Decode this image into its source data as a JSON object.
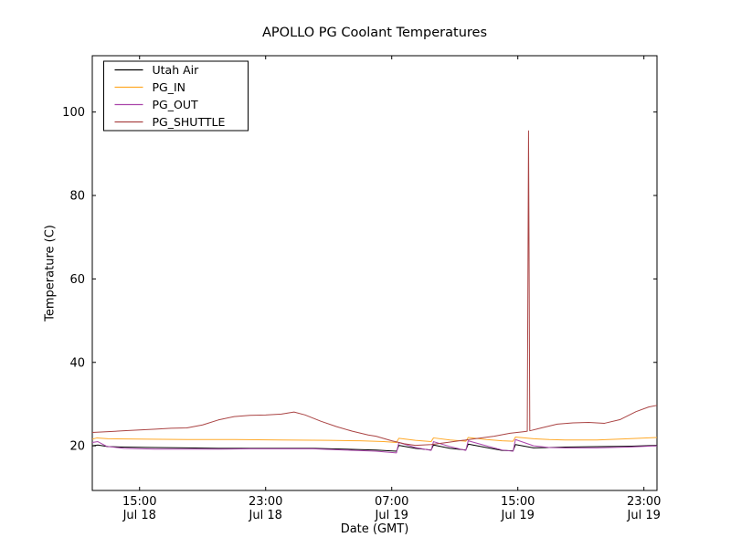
{
  "figure": {
    "title": "APOLLO PG Coolant Temperatures",
    "xlabel": "Date (GMT)",
    "ylabel": "Temperature (C)"
  },
  "chart_data": {
    "type": "line",
    "title": "APOLLO PG Coolant Temperatures",
    "xlabel": "Date (GMT)",
    "ylabel": "Temperature (C)",
    "grid": false,
    "legend_position": "upper-left",
    "x_unit": "hours since Jul 18 12:00 GMT",
    "xlim_hours": [
      0,
      35.83
    ],
    "ylim": [
      9.3,
      113.5
    ],
    "yticks": [
      20,
      40,
      60,
      80,
      100
    ],
    "xticks": [
      {
        "hours": 3,
        "time": "15:00",
        "date": "Jul 18"
      },
      {
        "hours": 11,
        "time": "23:00",
        "date": "Jul 18"
      },
      {
        "hours": 19,
        "time": "07:00",
        "date": "Jul 19"
      },
      {
        "hours": 27,
        "time": "15:00",
        "date": "Jul 19"
      },
      {
        "hours": 35,
        "time": "23:00",
        "date": "Jul 19"
      }
    ],
    "series": [
      {
        "name": "Utah Air",
        "color": "#000000",
        "points": [
          [
            0,
            20.0
          ],
          [
            0.35,
            20.2
          ],
          [
            1,
            19.8
          ],
          [
            2,
            19.7
          ],
          [
            4,
            19.6
          ],
          [
            6,
            19.5
          ],
          [
            8,
            19.4
          ],
          [
            10,
            19.4
          ],
          [
            12,
            19.4
          ],
          [
            14,
            19.4
          ],
          [
            16,
            19.2
          ],
          [
            18,
            19.0
          ],
          [
            19.3,
            18.7
          ],
          [
            19.45,
            20.1
          ],
          [
            20.5,
            19.4
          ],
          [
            21.5,
            19.0
          ],
          [
            21.65,
            20.2
          ],
          [
            22.7,
            19.4
          ],
          [
            23.7,
            19.0
          ],
          [
            23.85,
            20.4
          ],
          [
            25,
            19.6
          ],
          [
            26,
            18.9
          ],
          [
            26.7,
            18.8
          ],
          [
            26.85,
            20.3
          ],
          [
            28,
            19.5
          ],
          [
            29,
            19.6
          ],
          [
            30,
            19.7
          ],
          [
            32,
            19.8
          ],
          [
            34,
            19.9
          ],
          [
            35.83,
            20.1
          ]
        ]
      },
      {
        "name": "PG_IN",
        "color": "#FFA928",
        "points": [
          [
            0,
            21.6
          ],
          [
            0.3,
            21.9
          ],
          [
            1,
            21.7
          ],
          [
            3,
            21.6
          ],
          [
            6,
            21.5
          ],
          [
            9,
            21.5
          ],
          [
            12,
            21.4
          ],
          [
            15,
            21.3
          ],
          [
            17,
            21.2
          ],
          [
            18.5,
            21.0
          ],
          [
            19.3,
            20.8
          ],
          [
            19.45,
            21.8
          ],
          [
            20.5,
            21.3
          ],
          [
            21.5,
            21.0
          ],
          [
            21.65,
            21.9
          ],
          [
            22.7,
            21.4
          ],
          [
            23.7,
            21.1
          ],
          [
            23.85,
            22.0
          ],
          [
            25,
            21.5
          ],
          [
            26,
            21.2
          ],
          [
            26.7,
            21.1
          ],
          [
            26.85,
            22.1
          ],
          [
            28,
            21.7
          ],
          [
            29,
            21.5
          ],
          [
            30,
            21.4
          ],
          [
            32,
            21.4
          ],
          [
            34,
            21.7
          ],
          [
            35.83,
            22.0
          ]
        ]
      },
      {
        "name": "PG_OUT",
        "color": "#AA44AA",
        "points": [
          [
            0,
            20.8
          ],
          [
            0.35,
            21.0
          ],
          [
            0.9,
            19.9
          ],
          [
            2,
            19.4
          ],
          [
            4,
            19.2
          ],
          [
            6,
            19.2
          ],
          [
            8,
            19.2
          ],
          [
            10,
            19.3
          ],
          [
            12,
            19.3
          ],
          [
            14,
            19.3
          ],
          [
            16,
            19.0
          ],
          [
            18,
            18.7
          ],
          [
            19.3,
            18.3
          ],
          [
            19.45,
            20.8
          ],
          [
            20.5,
            19.6
          ],
          [
            21.5,
            18.9
          ],
          [
            21.65,
            21.0
          ],
          [
            22.7,
            19.8
          ],
          [
            23.7,
            18.9
          ],
          [
            23.85,
            21.2
          ],
          [
            25,
            20.0
          ],
          [
            26,
            19.0
          ],
          [
            26.7,
            18.7
          ],
          [
            26.85,
            21.5
          ],
          [
            28,
            20.0
          ],
          [
            29,
            19.6
          ],
          [
            30,
            19.5
          ],
          [
            32,
            19.5
          ],
          [
            34,
            19.7
          ],
          [
            35.83,
            20.0
          ]
        ]
      },
      {
        "name": "PG_SHUTTLE",
        "color": "#AA4444",
        "points": [
          [
            0,
            23.2
          ],
          [
            1,
            23.4
          ],
          [
            2,
            23.6
          ],
          [
            3,
            23.8
          ],
          [
            4,
            24.0
          ],
          [
            5,
            24.2
          ],
          [
            6,
            24.3
          ],
          [
            7,
            25.0
          ],
          [
            8,
            26.2
          ],
          [
            9,
            27.0
          ],
          [
            10,
            27.3
          ],
          [
            11,
            27.4
          ],
          [
            12,
            27.6
          ],
          [
            12.8,
            28.1
          ],
          [
            13.5,
            27.4
          ],
          [
            14.5,
            25.9
          ],
          [
            15.5,
            24.6
          ],
          [
            16.5,
            23.5
          ],
          [
            17.5,
            22.6
          ],
          [
            18,
            22.3
          ],
          [
            19,
            21.2
          ],
          [
            19.8,
            20.5
          ],
          [
            20.5,
            20.1
          ],
          [
            21.5,
            20.3
          ],
          [
            22.5,
            20.8
          ],
          [
            23.5,
            21.3
          ],
          [
            24.5,
            21.8
          ],
          [
            25.5,
            22.3
          ],
          [
            26.5,
            23.0
          ],
          [
            27.4,
            23.4
          ],
          [
            27.6,
            23.5
          ],
          [
            27.68,
            95.5
          ],
          [
            27.76,
            23.6
          ],
          [
            28.5,
            24.3
          ],
          [
            29.5,
            25.2
          ],
          [
            30.5,
            25.5
          ],
          [
            31.5,
            25.6
          ],
          [
            32.5,
            25.4
          ],
          [
            33.5,
            26.3
          ],
          [
            34.5,
            28.2
          ],
          [
            35.3,
            29.3
          ],
          [
            35.83,
            29.7
          ]
        ]
      }
    ]
  }
}
